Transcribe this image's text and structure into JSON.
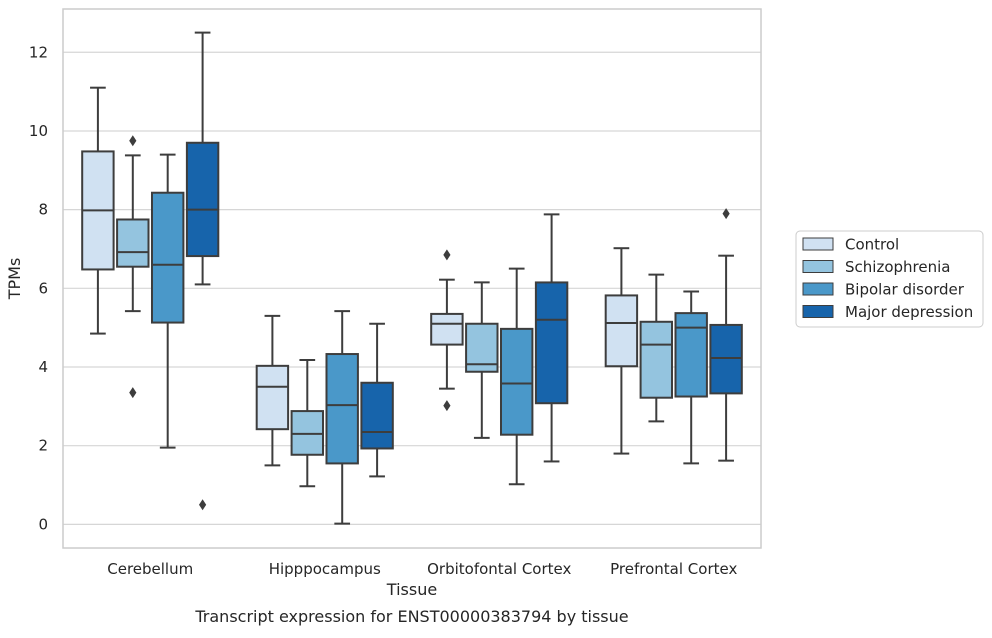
{
  "chart_data": {
    "type": "box",
    "title": "",
    "caption": "Transcript expression for ENST00000383794 by tissue",
    "xlabel": "Tissue",
    "ylabel": "TPMs",
    "ylim": [
      -0.6,
      13.1
    ],
    "yticks": [
      0,
      2,
      4,
      6,
      8,
      10,
      12
    ],
    "grid": "horizontal",
    "legend_position": "right",
    "categories": [
      "Cerebellum",
      "Hipppocampus",
      "Orbitofontal Cortex",
      "Prefrontal Cortex"
    ],
    "series": [
      {
        "name": "Control",
        "color": "#d0e1f2",
        "boxes": [
          {
            "whisker_low": 4.85,
            "q1": 6.48,
            "median": 7.98,
            "q3": 9.48,
            "whisker_high": 11.1,
            "outliers": []
          },
          {
            "whisker_low": 1.5,
            "q1": 2.42,
            "median": 3.5,
            "q3": 4.03,
            "whisker_high": 5.3,
            "outliers": []
          },
          {
            "whisker_low": 3.45,
            "q1": 4.57,
            "median": 5.1,
            "q3": 5.35,
            "whisker_high": 6.22,
            "outliers": [
              6.85,
              3.02
            ]
          },
          {
            "whisker_low": 1.8,
            "q1": 4.02,
            "median": 5.12,
            "q3": 5.82,
            "whisker_high": 7.02,
            "outliers": []
          }
        ]
      },
      {
        "name": "Schizophrenia",
        "color": "#94c4df",
        "boxes": [
          {
            "whisker_low": 5.42,
            "q1": 6.55,
            "median": 6.92,
            "q3": 7.75,
            "whisker_high": 9.38,
            "outliers": [
              9.75,
              3.35
            ]
          },
          {
            "whisker_low": 0.97,
            "q1": 1.77,
            "median": 2.3,
            "q3": 2.88,
            "whisker_high": 4.18,
            "outliers": []
          },
          {
            "whisker_low": 2.2,
            "q1": 3.88,
            "median": 4.07,
            "q3": 5.1,
            "whisker_high": 6.15,
            "outliers": []
          },
          {
            "whisker_low": 2.62,
            "q1": 3.22,
            "median": 4.57,
            "q3": 5.15,
            "whisker_high": 6.35,
            "outliers": []
          }
        ]
      },
      {
        "name": "Bipolar disorder",
        "color": "#4a98c9",
        "boxes": [
          {
            "whisker_low": 1.95,
            "q1": 5.13,
            "median": 6.6,
            "q3": 8.43,
            "whisker_high": 9.4,
            "outliers": []
          },
          {
            "whisker_low": 0.02,
            "q1": 1.55,
            "median": 3.03,
            "q3": 4.33,
            "whisker_high": 5.42,
            "outliers": []
          },
          {
            "whisker_low": 1.02,
            "q1": 2.28,
            "median": 3.58,
            "q3": 4.97,
            "whisker_high": 6.5,
            "outliers": []
          },
          {
            "whisker_low": 1.55,
            "q1": 3.25,
            "median": 5.0,
            "q3": 5.37,
            "whisker_high": 5.92,
            "outliers": []
          }
        ]
      },
      {
        "name": "Major depression",
        "color": "#1764ab",
        "boxes": [
          {
            "whisker_low": 6.1,
            "q1": 6.82,
            "median": 8.0,
            "q3": 9.7,
            "whisker_high": 12.5,
            "outliers": [
              0.5
            ]
          },
          {
            "whisker_low": 1.22,
            "q1": 1.93,
            "median": 2.35,
            "q3": 3.6,
            "whisker_high": 5.1,
            "outliers": []
          },
          {
            "whisker_low": 1.6,
            "q1": 3.08,
            "median": 5.2,
            "q3": 6.15,
            "whisker_high": 7.88,
            "outliers": []
          },
          {
            "whisker_low": 1.62,
            "q1": 3.33,
            "median": 4.23,
            "q3": 5.07,
            "whisker_high": 6.83,
            "outliers": [
              7.9
            ]
          }
        ]
      }
    ]
  }
}
